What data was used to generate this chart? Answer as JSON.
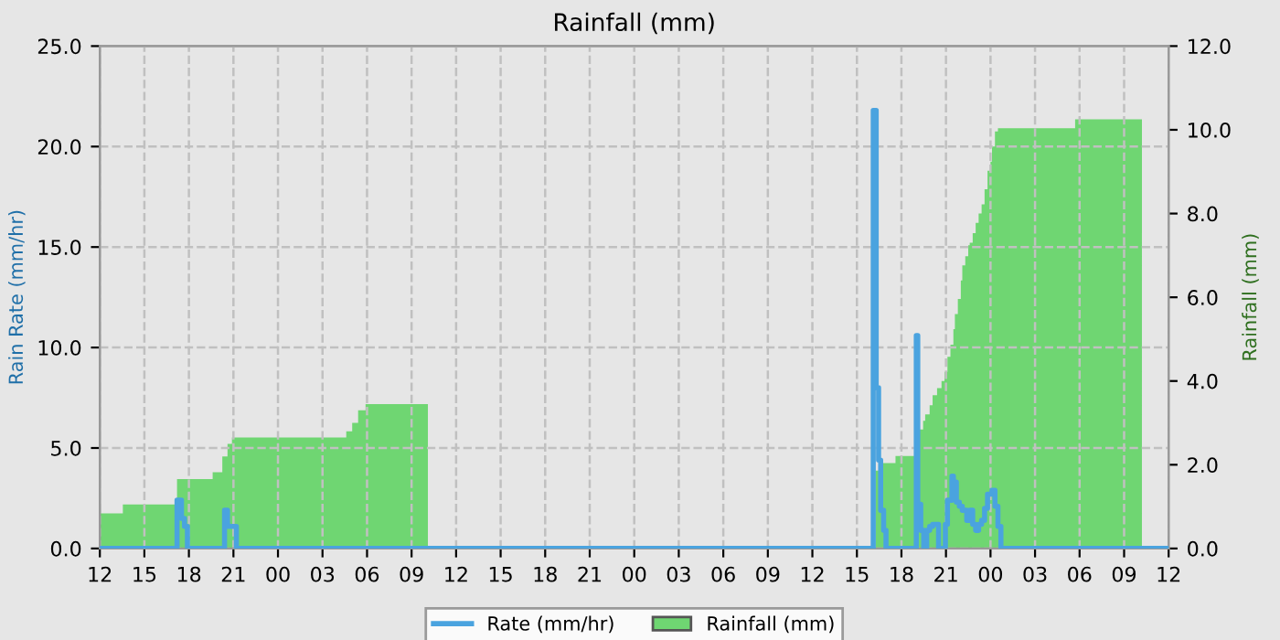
{
  "chart_data": {
    "type": "step",
    "title": "Rainfall (mm)",
    "ylabel": "Rain Rate (mm/hr)",
    "y2label": "Rainfall (mm)",
    "xlim": [
      12,
      84
    ],
    "xticks": [
      {
        "value": 12,
        "label": "12"
      },
      {
        "value": 15,
        "label": "15"
      },
      {
        "value": 18,
        "label": "18"
      },
      {
        "value": 21,
        "label": "21"
      },
      {
        "value": 24,
        "label": "00"
      },
      {
        "value": 27,
        "label": "03"
      },
      {
        "value": 30,
        "label": "06"
      },
      {
        "value": 33,
        "label": "09"
      },
      {
        "value": 36,
        "label": "12"
      },
      {
        "value": 39,
        "label": "15"
      },
      {
        "value": 42,
        "label": "18"
      },
      {
        "value": 45,
        "label": "21"
      },
      {
        "value": 48,
        "label": "00"
      },
      {
        "value": 51,
        "label": "03"
      },
      {
        "value": 54,
        "label": "06"
      },
      {
        "value": 57,
        "label": "09"
      },
      {
        "value": 60,
        "label": "12"
      },
      {
        "value": 63,
        "label": "15"
      },
      {
        "value": 66,
        "label": "18"
      },
      {
        "value": 69,
        "label": "21"
      },
      {
        "value": 72,
        "label": "00"
      },
      {
        "value": 75,
        "label": "03"
      },
      {
        "value": 78,
        "label": "06"
      },
      {
        "value": 81,
        "label": "09"
      },
      {
        "value": 84,
        "label": "12"
      }
    ],
    "ylim": [
      0,
      25
    ],
    "yticks": [
      {
        "value": 0,
        "label": "0.0"
      },
      {
        "value": 5,
        "label": "5.0"
      },
      {
        "value": 10,
        "label": "10.0"
      },
      {
        "value": 15,
        "label": "15.0"
      },
      {
        "value": 20,
        "label": "20.0"
      },
      {
        "value": 25,
        "label": "25.0"
      }
    ],
    "y2lim": [
      0,
      12
    ],
    "y2ticks": [
      {
        "value": 0,
        "label": "0.0"
      },
      {
        "value": 2,
        "label": "2.0"
      },
      {
        "value": 4,
        "label": "4.0"
      },
      {
        "value": 6,
        "label": "6.0"
      },
      {
        "value": 8,
        "label": "8.0"
      },
      {
        "value": 10,
        "label": "10.0"
      },
      {
        "value": 12,
        "label": "12.0"
      }
    ],
    "grid": true,
    "legend": "bottom",
    "line_style": "solid",
    "marker": "none",
    "series": [
      {
        "name": "Rainfall (mm)",
        "type": "area",
        "axis": "y2",
        "color": "#6fd672",
        "x": [
          12,
          13.55,
          17.2,
          19.6,
          20.25,
          20.6,
          20.9,
          28.6,
          29.0,
          29.4,
          29.9,
          34.1,
          64.25,
          64.6,
          65.6,
          67.2,
          67.46,
          67.6,
          67.9,
          68.1,
          68.4,
          68.7,
          68.9,
          69.1,
          69.3,
          69.5,
          69.6,
          69.8,
          70.0,
          70.1,
          70.3,
          70.5,
          70.6,
          70.8,
          71.0,
          71.2,
          71.4,
          71.6,
          71.8,
          72.0,
          72.1,
          72.3,
          72.5,
          77.7,
          82.2,
          84
        ],
        "values": [
          0.84,
          1.05,
          1.66,
          1.82,
          2.2,
          2.5,
          2.65,
          2.8,
          3.0,
          3.3,
          3.45,
          0,
          1.86,
          2.04,
          2.21,
          2.84,
          3.05,
          3.2,
          3.42,
          3.66,
          3.83,
          4.0,
          4.22,
          4.58,
          4.87,
          5.24,
          5.6,
          5.96,
          6.4,
          6.76,
          6.98,
          7.24,
          7.3,
          7.53,
          7.78,
          8.0,
          8.22,
          8.58,
          9.02,
          9.24,
          9.6,
          9.96,
          10.04,
          10.25,
          0,
          0
        ]
      },
      {
        "name": "Rate (mm/hr)",
        "color": "#4aa3df",
        "x": [
          12,
          17.2,
          17.5,
          17.7,
          17.9,
          20.4,
          20.6,
          21.2,
          64.1,
          64.3,
          64.46,
          64.6,
          64.8,
          64.96,
          67.0,
          67.1,
          67.3,
          67.5,
          67.7,
          67.9,
          68.1,
          68.5,
          68.96,
          69.1,
          69.4,
          69.5,
          69.7,
          69.9,
          70.1,
          70.4,
          70.6,
          70.8,
          71.0,
          71.2,
          71.4,
          71.6,
          71.8,
          72.1,
          72.3,
          72.5,
          72.7,
          84
        ],
        "values": [
          0,
          2.4,
          1.5,
          1.1,
          0,
          1.9,
          1.1,
          0,
          21.8,
          8.0,
          4.4,
          1.9,
          0.9,
          0,
          10.6,
          2.2,
          0.9,
          0,
          0.9,
          1.1,
          1.2,
          0,
          1.2,
          2.4,
          3.6,
          3.3,
          2.3,
          2.1,
          1.9,
          1.4,
          1.9,
          1.2,
          0.9,
          1.2,
          1.4,
          2.0,
          2.7,
          2.9,
          2.1,
          1.1,
          0,
          0
        ]
      }
    ]
  }
}
